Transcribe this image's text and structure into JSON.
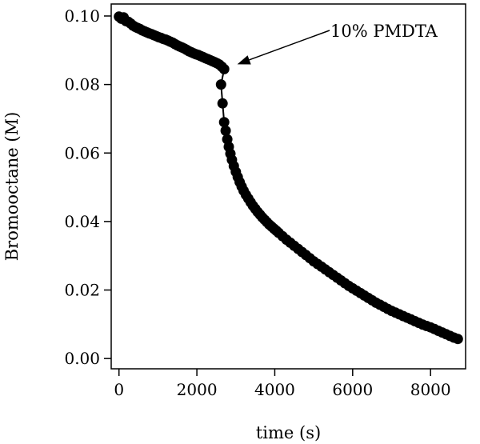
{
  "chart_data": {
    "type": "scatter",
    "title": "",
    "xlabel": "time (s)",
    "ylabel": "Bromooctane (M)",
    "xlim": [
      -200,
      8900
    ],
    "ylim": [
      -0.003,
      0.1035
    ],
    "xticks": [
      0,
      2000,
      4000,
      6000,
      8000
    ],
    "xtick_labels": [
      "0",
      "2000",
      "4000",
      "6000",
      "8000"
    ],
    "yticks": [
      0.0,
      0.02,
      0.04,
      0.06,
      0.08,
      0.1
    ],
    "ytick_labels": [
      "0.00",
      "0.02",
      "0.04",
      "0.06",
      "0.08",
      "0.10"
    ],
    "grid": false,
    "legend": "none",
    "marker_color": "#000000",
    "annotation": {
      "text": "10% PMDTA",
      "points_to": {
        "x": 2750,
        "y": 0.0845
      }
    },
    "series": [
      {
        "x": [
          0,
          60,
          120,
          180,
          240,
          300,
          360,
          420,
          480,
          540,
          600,
          660,
          720,
          780,
          840,
          900,
          960,
          1020,
          1080,
          1140,
          1200,
          1260,
          1320,
          1380,
          1440,
          1500,
          1560,
          1620,
          1680,
          1740,
          1800,
          1860,
          1920,
          1980,
          2040,
          2100,
          2160,
          2220,
          2280,
          2340,
          2400,
          2460,
          2520,
          2580,
          2640,
          2700,
          2620,
          2660,
          2700,
          2740,
          2780,
          2820,
          2860,
          2900,
          2950,
          3000,
          3050,
          3100,
          3150,
          3200,
          3260,
          3320,
          3380,
          3440,
          3500,
          3560,
          3620,
          3680,
          3740,
          3800,
          3860,
          3920,
          3980,
          4040,
          4100,
          4200,
          4300,
          4400,
          4500,
          4600,
          4700,
          4800,
          4900,
          5000,
          5100,
          5200,
          5300,
          5400,
          5500,
          5600,
          5700,
          5800,
          5900,
          6000,
          6100,
          6200,
          6300,
          6400,
          6500,
          6600,
          6700,
          6800,
          6900,
          7000,
          7100,
          7200,
          7300,
          7400,
          7500,
          7600,
          7700,
          7800,
          7900,
          8000,
          8100,
          8200,
          8300,
          8400,
          8500,
          8600,
          8700
        ],
        "y": [
          0.0998,
          0.0992,
          0.0996,
          0.0985,
          0.0983,
          0.0978,
          0.0972,
          0.0968,
          0.0965,
          0.0962,
          0.0958,
          0.0955,
          0.0952,
          0.0949,
          0.0947,
          0.0944,
          0.0941,
          0.0938,
          0.0936,
          0.0933,
          0.0931,
          0.0928,
          0.0925,
          0.0922,
          0.0918,
          0.0914,
          0.0911,
          0.0908,
          0.0905,
          0.0901,
          0.0897,
          0.0894,
          0.0891,
          0.0888,
          0.0886,
          0.0883,
          0.088,
          0.0877,
          0.0874,
          0.0871,
          0.0868,
          0.0865,
          0.0862,
          0.0858,
          0.0852,
          0.0845,
          0.08,
          0.0745,
          0.069,
          0.0665,
          0.064,
          0.0618,
          0.0598,
          0.058,
          0.0562,
          0.0545,
          0.053,
          0.0515,
          0.0502,
          0.049,
          0.0478,
          0.0467,
          0.0456,
          0.0446,
          0.0437,
          0.0428,
          0.042,
          0.0412,
          0.0405,
          0.0398,
          0.0391,
          0.0385,
          0.0379,
          0.0373,
          0.0367,
          0.0357,
          0.0347,
          0.0338,
          0.0329,
          0.032,
          0.0311,
          0.0302,
          0.0293,
          0.0284,
          0.0276,
          0.0268,
          0.026,
          0.0252,
          0.0244,
          0.0236,
          0.0228,
          0.022,
          0.0212,
          0.0205,
          0.0198,
          0.0191,
          0.0184,
          0.0177,
          0.017,
          0.0163,
          0.0157,
          0.0151,
          0.0145,
          0.0139,
          0.0134,
          0.0129,
          0.0124,
          0.0119,
          0.0114,
          0.0109,
          0.0104,
          0.0099,
          0.0095,
          0.0091,
          0.0086,
          0.0081,
          0.0076,
          0.0071,
          0.0066,
          0.0061,
          0.0057
        ]
      }
    ]
  }
}
